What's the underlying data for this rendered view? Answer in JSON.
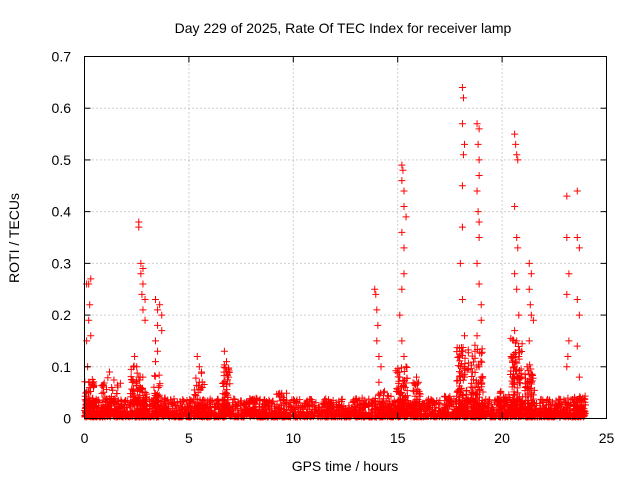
{
  "chart_data": {
    "type": "scatter",
    "title": "Day 229 of 2025, Rate Of TEC Index for receiver lamp",
    "xlabel": "GPS time / hours",
    "ylabel": "ROTI / TECUs",
    "xlim": [
      0,
      25
    ],
    "ylim": [
      0,
      0.7
    ],
    "xticks": [
      0,
      5,
      10,
      15,
      20,
      25
    ],
    "yticks": [
      0,
      0.1,
      0.2,
      0.3,
      0.4,
      0.5,
      0.6,
      0.7
    ],
    "grid": true,
    "marker": "+",
    "color": "#ff0000",
    "series": [
      {
        "values": [
          [
            0.1,
            0.26
          ],
          [
            0.2,
            0.26
          ],
          [
            0.3,
            0.27
          ],
          [
            0.25,
            0.22
          ],
          [
            0.2,
            0.19
          ],
          [
            0.1,
            0.15
          ],
          [
            0.3,
            0.16
          ],
          [
            0.15,
            0.1
          ],
          [
            0.2,
            0.07
          ],
          [
            1.2,
            0.09
          ],
          [
            1.3,
            0.06
          ],
          [
            2.4,
            0.12
          ],
          [
            2.5,
            0.1
          ],
          [
            2.6,
            0.08
          ],
          [
            2.6,
            0.38
          ],
          [
            2.6,
            0.37
          ],
          [
            2.7,
            0.3
          ],
          [
            2.7,
            0.28
          ],
          [
            2.8,
            0.29
          ],
          [
            2.8,
            0.26
          ],
          [
            2.9,
            0.23
          ],
          [
            2.8,
            0.21
          ],
          [
            2.9,
            0.19
          ],
          [
            2.75,
            0.24
          ],
          [
            3.4,
            0.23
          ],
          [
            3.5,
            0.21
          ],
          [
            3.6,
            0.22
          ],
          [
            3.7,
            0.2
          ],
          [
            3.5,
            0.18
          ],
          [
            3.4,
            0.15
          ],
          [
            3.5,
            0.13
          ],
          [
            3.4,
            0.11
          ],
          [
            3.7,
            0.17
          ],
          [
            5.4,
            0.12
          ],
          [
            5.5,
            0.1
          ],
          [
            5.6,
            0.09
          ],
          [
            5.5,
            0.07
          ],
          [
            6.7,
            0.13
          ],
          [
            6.8,
            0.11
          ],
          [
            6.8,
            0.09
          ],
          [
            6.9,
            0.08
          ],
          [
            13.9,
            0.25
          ],
          [
            13.95,
            0.24
          ],
          [
            14.0,
            0.21
          ],
          [
            14.05,
            0.18
          ],
          [
            14.0,
            0.15
          ],
          [
            14.1,
            0.12
          ],
          [
            14.2,
            0.1
          ],
          [
            14.1,
            0.07
          ],
          [
            15.2,
            0.49
          ],
          [
            15.25,
            0.48
          ],
          [
            15.2,
            0.46
          ],
          [
            15.3,
            0.44
          ],
          [
            15.3,
            0.41
          ],
          [
            15.4,
            0.39
          ],
          [
            15.2,
            0.36
          ],
          [
            15.3,
            0.33
          ],
          [
            15.3,
            0.28
          ],
          [
            15.2,
            0.25
          ],
          [
            15.1,
            0.2
          ],
          [
            15.2,
            0.15
          ],
          [
            15.3,
            0.12
          ],
          [
            15.4,
            0.1
          ],
          [
            15.1,
            0.08
          ],
          [
            15.9,
            0.08
          ],
          [
            16.0,
            0.07
          ],
          [
            18.1,
            0.64
          ],
          [
            18.15,
            0.62
          ],
          [
            18.1,
            0.57
          ],
          [
            18.2,
            0.53
          ],
          [
            18.15,
            0.51
          ],
          [
            18.1,
            0.45
          ],
          [
            18.1,
            0.37
          ],
          [
            18.0,
            0.3
          ],
          [
            18.1,
            0.23
          ],
          [
            18.2,
            0.16
          ],
          [
            18.1,
            0.13
          ],
          [
            18.0,
            0.1
          ],
          [
            18.2,
            0.08
          ],
          [
            18.8,
            0.57
          ],
          [
            18.9,
            0.56
          ],
          [
            18.85,
            0.53
          ],
          [
            18.9,
            0.5
          ],
          [
            18.9,
            0.47
          ],
          [
            18.8,
            0.44
          ],
          [
            18.85,
            0.4
          ],
          [
            18.9,
            0.38
          ],
          [
            18.9,
            0.35
          ],
          [
            18.8,
            0.3
          ],
          [
            18.9,
            0.26
          ],
          [
            19.0,
            0.22
          ],
          [
            19.0,
            0.19
          ],
          [
            18.8,
            0.16
          ],
          [
            18.7,
            0.13
          ],
          [
            18.9,
            0.1
          ],
          [
            19.0,
            0.08
          ],
          [
            20.6,
            0.55
          ],
          [
            20.65,
            0.53
          ],
          [
            20.7,
            0.51
          ],
          [
            20.75,
            0.5
          ],
          [
            20.6,
            0.41
          ],
          [
            20.7,
            0.35
          ],
          [
            20.75,
            0.33
          ],
          [
            20.6,
            0.28
          ],
          [
            20.7,
            0.25
          ],
          [
            20.8,
            0.2
          ],
          [
            20.6,
            0.17
          ],
          [
            20.7,
            0.15
          ],
          [
            20.8,
            0.12
          ],
          [
            20.6,
            0.1
          ],
          [
            20.9,
            0.08
          ],
          [
            21.3,
            0.3
          ],
          [
            21.4,
            0.28
          ],
          [
            21.3,
            0.25
          ],
          [
            21.35,
            0.22
          ],
          [
            21.4,
            0.2
          ],
          [
            21.5,
            0.19
          ],
          [
            21.3,
            0.15
          ],
          [
            21.2,
            0.1
          ],
          [
            21.4,
            0.07
          ],
          [
            23.1,
            0.43
          ],
          [
            23.1,
            0.35
          ],
          [
            23.2,
            0.28
          ],
          [
            23.1,
            0.24
          ],
          [
            23.2,
            0.15
          ],
          [
            23.15,
            0.12
          ],
          [
            23.1,
            0.1
          ],
          [
            23.6,
            0.44
          ],
          [
            23.6,
            0.35
          ],
          [
            23.7,
            0.33
          ],
          [
            23.6,
            0.23
          ],
          [
            23.7,
            0.2
          ],
          [
            23.6,
            0.14
          ],
          [
            23.7,
            0.08
          ]
        ]
      }
    ],
    "baseline": {
      "x_range": [
        0,
        24
      ],
      "y_range": [
        0,
        0.035
      ],
      "point_count": 2200
    },
    "clusters": [
      {
        "x_center": 0.2,
        "x_spread": 0.25,
        "y_max": 0.08,
        "count": 70
      },
      {
        "x_center": 1.3,
        "x_spread": 0.5,
        "y_max": 0.08,
        "count": 60
      },
      {
        "x_center": 2.5,
        "x_spread": 0.3,
        "y_max": 0.1,
        "count": 70
      },
      {
        "x_center": 2.8,
        "x_spread": 0.2,
        "y_max": 0.06,
        "count": 40
      },
      {
        "x_center": 3.6,
        "x_spread": 0.3,
        "y_max": 0.08,
        "count": 50
      },
      {
        "x_center": 5.5,
        "x_spread": 0.3,
        "y_max": 0.09,
        "count": 60
      },
      {
        "x_center": 6.8,
        "x_spread": 0.2,
        "y_max": 0.1,
        "count": 60
      },
      {
        "x_center": 8.0,
        "x_spread": 0.3,
        "y_max": 0.04,
        "count": 25
      },
      {
        "x_center": 9.4,
        "x_spread": 0.3,
        "y_max": 0.05,
        "count": 25
      },
      {
        "x_center": 12.9,
        "x_spread": 0.6,
        "y_max": 0.035,
        "count": 30
      },
      {
        "x_center": 14.3,
        "x_spread": 0.4,
        "y_max": 0.05,
        "count": 55
      },
      {
        "x_center": 15.2,
        "x_spread": 0.3,
        "y_max": 0.1,
        "count": 80
      },
      {
        "x_center": 15.9,
        "x_spread": 0.2,
        "y_max": 0.07,
        "count": 50
      },
      {
        "x_center": 17.6,
        "x_spread": 0.5,
        "y_max": 0.04,
        "count": 40
      },
      {
        "x_center": 18.1,
        "x_spread": 0.3,
        "y_max": 0.14,
        "count": 100
      },
      {
        "x_center": 18.8,
        "x_spread": 0.3,
        "y_max": 0.14,
        "count": 100
      },
      {
        "x_center": 20.1,
        "x_spread": 0.3,
        "y_max": 0.05,
        "count": 40
      },
      {
        "x_center": 20.7,
        "x_spread": 0.3,
        "y_max": 0.16,
        "count": 110
      },
      {
        "x_center": 21.3,
        "x_spread": 0.25,
        "y_max": 0.1,
        "count": 70
      },
      {
        "x_center": 22.8,
        "x_spread": 0.6,
        "y_max": 0.035,
        "count": 40
      },
      {
        "x_center": 23.7,
        "x_spread": 0.3,
        "y_max": 0.04,
        "count": 50
      }
    ]
  }
}
